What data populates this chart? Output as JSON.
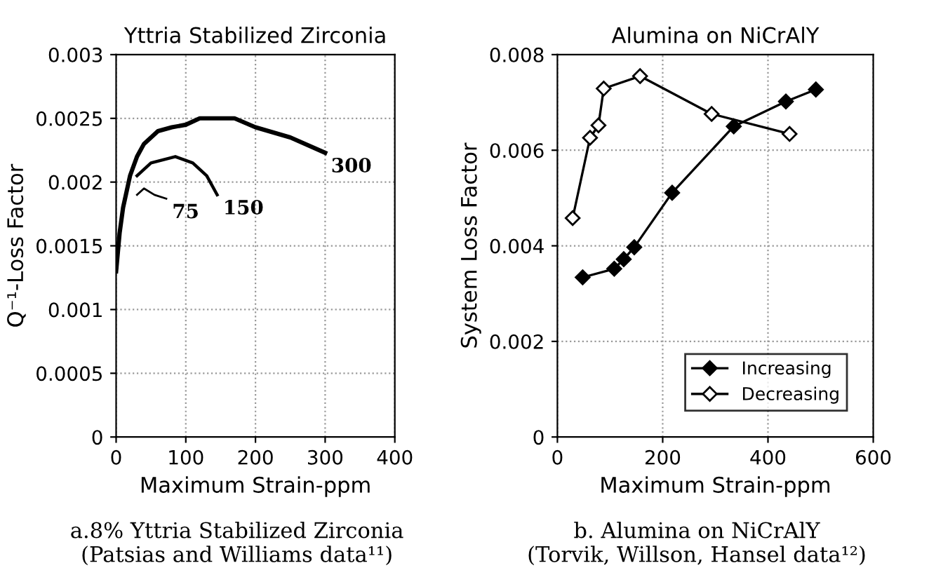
{
  "chart_data": [
    {
      "type": "line",
      "title": "Yttria Stabilized Zirconia",
      "xlabel": "Maximum Strain-ppm",
      "ylabel": "Q⁻¹-Loss Factor",
      "xlim": [
        0,
        400
      ],
      "xticks": [
        0,
        100,
        200,
        300,
        400
      ],
      "ylim": [
        0,
        0.003
      ],
      "yticks": [
        0,
        0.0005,
        0.001,
        0.0015,
        0.002,
        0.0025,
        0.003
      ],
      "grid": true,
      "legend": false,
      "marker": "none",
      "line_style": "solid",
      "series": [
        {
          "color": "#000000",
          "x": [
            0,
            5,
            10,
            20,
            30,
            40,
            60,
            80,
            100,
            120,
            170,
            200,
            250,
            300
          ],
          "values": [
            0.0013,
            0.0016,
            0.0018,
            0.00205,
            0.0022,
            0.0023,
            0.0024,
            0.00243,
            0.00245,
            0.0025,
            0.0025,
            0.00243,
            0.00235,
            0.00223
          ]
        },
        {
          "color": "#000000",
          "x": [
            30,
            50,
            85,
            110,
            130,
            145
          ],
          "values": [
            0.00205,
            0.00215,
            0.0022,
            0.00215,
            0.00205,
            0.0019
          ]
        },
        {
          "color": "#000000",
          "x": [
            30,
            40,
            55,
            72
          ],
          "values": [
            0.0019,
            0.00195,
            0.0019,
            0.00187
          ]
        }
      ],
      "annotations": [
        {
          "text": "300",
          "x": 300,
          "y": 0.00223
        },
        {
          "text": "150",
          "x": 145,
          "y": 0.0019
        },
        {
          "text": "75",
          "x": 72,
          "y": 0.00187
        },
        "a.8% Yttria Stabilized Zirconia\n(Patsias and Williams data¹¹)"
      ]
    },
    {
      "type": "line",
      "title": "Alumina on NiCrAlY",
      "xlabel": "Maximum Strain-ppm",
      "ylabel": "System Loss Factor",
      "xlim": [
        0,
        600
      ],
      "xticks": [
        0,
        200,
        400,
        600
      ],
      "ylim": [
        0,
        0.008
      ],
      "yticks": [
        0,
        0.002,
        0.004,
        0.006,
        0.008
      ],
      "grid": true,
      "legend": "bottom right",
      "marker": "diamond",
      "line_style": "solid",
      "series": [
        {
          "name": "Increasing",
          "color": "#000000",
          "x": [
            48,
            108,
            126,
            146,
            218,
            335,
            434,
            491
          ],
          "values": [
            0.00334,
            0.00352,
            0.00372,
            0.00397,
            0.00511,
            0.0065,
            0.00702,
            0.00727
          ]
        },
        {
          "name": "Decreasing",
          "color": "#000000",
          "x": [
            29,
            62,
            78,
            88,
            157,
            293,
            441
          ],
          "values": [
            0.00458,
            0.00626,
            0.00652,
            0.00729,
            0.00755,
            0.00676,
            0.00634
          ]
        }
      ],
      "annotations": [
        "b. Alumina on NiCrAlY\n(Torvik, Willson, Hansel data¹²)"
      ]
    }
  ]
}
